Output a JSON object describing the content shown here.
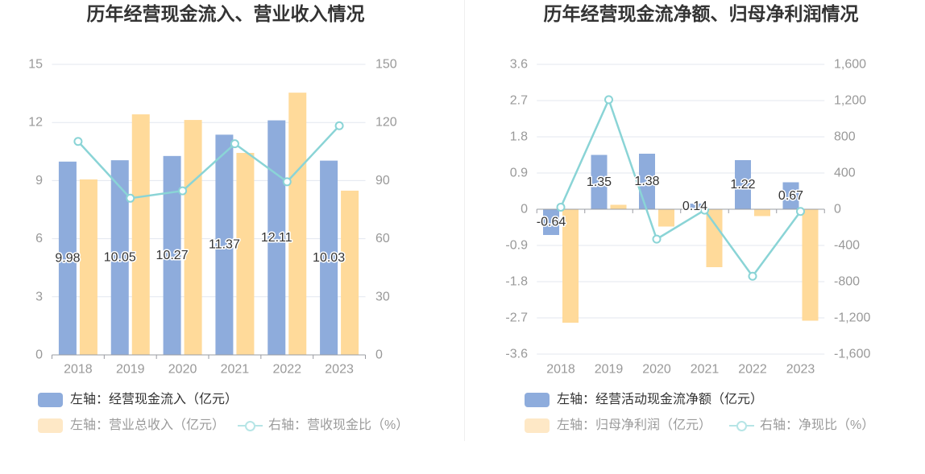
{
  "chart_data": [
    {
      "type": "bar",
      "title": "历年经营现金流入、营业收入情况",
      "categories": [
        "2018",
        "2019",
        "2020",
        "2021",
        "2022",
        "2023"
      ],
      "left_axis": {
        "min": 0,
        "max": 15,
        "ticks": [
          "0",
          "3",
          "6",
          "9",
          "12",
          "15"
        ]
      },
      "right_axis": {
        "min": 0,
        "max": 150,
        "ticks": [
          "0",
          "30",
          "60",
          "90",
          "120",
          "150"
        ]
      },
      "series": [
        {
          "name": "左轴：经营现金流入（亿元）",
          "type": "bar",
          "y_axis": "left",
          "values": [
            9.98,
            10.05,
            10.27,
            11.37,
            12.11,
            10.03
          ],
          "data_labels": true,
          "color": "#8eacdc",
          "legend_color": "#8eacdc"
        },
        {
          "name": "左轴：营业总收入（亿元）",
          "type": "bar",
          "y_axis": "left",
          "values": [
            9.06,
            12.42,
            12.13,
            10.43,
            13.54,
            8.48
          ],
          "data_labels": false,
          "color": "#ffda9a",
          "legend_color": "#fee8c6"
        },
        {
          "name": "右轴：营收现金比（%）",
          "type": "line",
          "y_axis": "right",
          "values": [
            110.2,
            80.9,
            84.7,
            109.0,
            89.4,
            118.3
          ],
          "data_labels": false,
          "color": "#8ad4d6",
          "legend_color": "#b6e5e6"
        }
      ],
      "grid": true,
      "legend": "bottom-left"
    },
    {
      "type": "bar",
      "title": "历年经营现金流净额、归母净利润情况",
      "categories": [
        "2018",
        "2019",
        "2020",
        "2021",
        "2022",
        "2023"
      ],
      "left_axis": {
        "min": -3.6,
        "max": 3.6,
        "ticks": [
          "-3.6",
          "-2.7",
          "-1.8",
          "-0.9",
          "0",
          "0.9",
          "1.8",
          "2.7",
          "3.6"
        ]
      },
      "right_axis": {
        "min": -1600,
        "max": 1600,
        "ticks": [
          "-1,600",
          "-1,200",
          "-800",
          "-400",
          "0",
          "400",
          "800",
          "1,200",
          "1,600"
        ]
      },
      "series": [
        {
          "name": "左轴：经营活动现金流净额（亿元）",
          "type": "bar",
          "y_axis": "left",
          "values": [
            -0.64,
            1.35,
            1.38,
            0.14,
            1.22,
            0.67
          ],
          "data_labels": true,
          "color": "#8eacdc",
          "legend_color": "#8eacdc"
        },
        {
          "name": "左轴：归母净利润（亿元）",
          "type": "bar",
          "y_axis": "left",
          "values": [
            -2.82,
            0.11,
            -0.43,
            -1.44,
            -0.17,
            -2.77
          ],
          "data_labels": false,
          "color": "#ffda9a",
          "legend_color": "#fee8c6"
        },
        {
          "name": "右轴：净现比（%）",
          "type": "line",
          "y_axis": "right",
          "values": [
            22.7,
            1210,
            -330,
            -9.7,
            -740,
            -24.2
          ],
          "data_labels": false,
          "color": "#8ad4d6",
          "legend_color": "#b6e5e6"
        }
      ],
      "grid": true,
      "legend": "bottom-left"
    }
  ]
}
